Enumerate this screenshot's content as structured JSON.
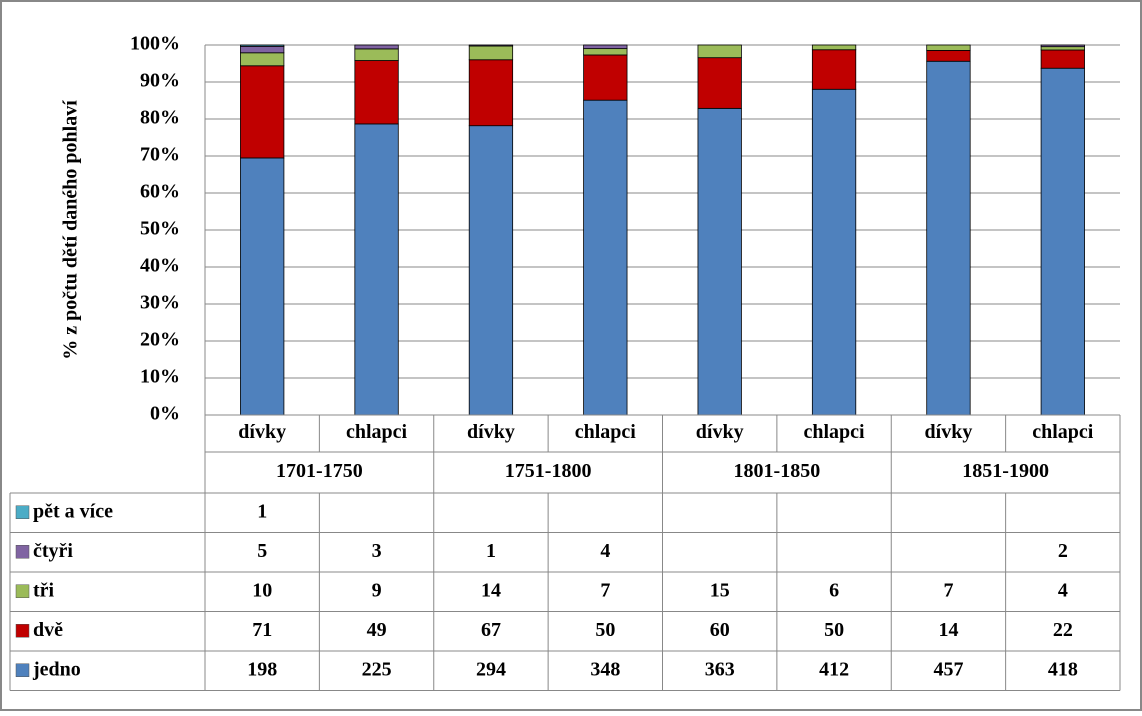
{
  "chart_data": {
    "type": "bar",
    "stacking": "percent",
    "ylabel": "% z počtu dětí daného pohlaví",
    "categories": [
      "dívky",
      "chlapci",
      "dívky",
      "chlapci",
      "dívky",
      "chlapci",
      "dívky",
      "chlapci"
    ],
    "groups": [
      "1701-1750",
      "1751-1800",
      "1801-1850",
      "1851-1900"
    ],
    "series": [
      {
        "name": "jedno",
        "color": "#4f81bd",
        "values": [
          198,
          225,
          294,
          348,
          363,
          412,
          457,
          418
        ]
      },
      {
        "name": "dvě",
        "color": "#c00000",
        "values": [
          71,
          49,
          67,
          50,
          60,
          50,
          14,
          22
        ]
      },
      {
        "name": "tři",
        "color": "#9bbb59",
        "values": [
          10,
          9,
          14,
          7,
          15,
          6,
          7,
          4
        ]
      },
      {
        "name": "čtyři",
        "color": "#8064a2",
        "values": [
          5,
          3,
          1,
          4,
          null,
          null,
          null,
          2
        ]
      },
      {
        "name": "pět a více",
        "color": "#4bacc6",
        "values": [
          1,
          null,
          null,
          null,
          null,
          null,
          null,
          null
        ]
      }
    ],
    "ylim": [
      0,
      100
    ],
    "yticks": [
      {
        "value": 0,
        "label": "0%"
      },
      {
        "value": 10,
        "label": "10%"
      },
      {
        "value": 20,
        "label": "20%"
      },
      {
        "value": 30,
        "label": "30%"
      },
      {
        "value": 40,
        "label": "40%"
      },
      {
        "value": 50,
        "label": "50%"
      },
      {
        "value": 60,
        "label": "60%"
      },
      {
        "value": 70,
        "label": "70%"
      },
      {
        "value": 80,
        "label": "80%"
      },
      {
        "value": 90,
        "label": "90%"
      },
      {
        "value": 100,
        "label": "100%"
      }
    ],
    "grid": true
  }
}
